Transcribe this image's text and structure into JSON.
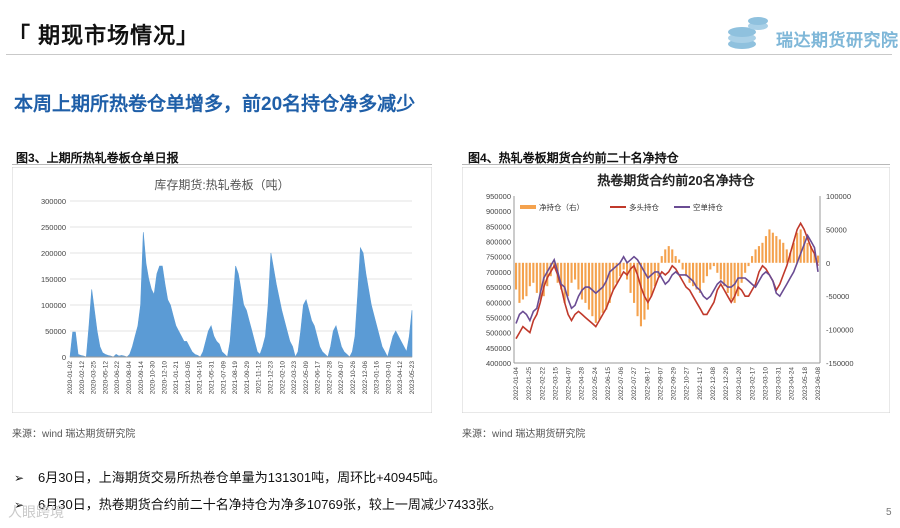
{
  "header": {
    "title": "「 期现市场情况」",
    "logo_text": "瑞达期货研究院"
  },
  "headline": "本周上期所热卷仓单增多，前20名持仓净多减少",
  "figures": [
    {
      "title": "图3、上期所热轧卷板仓单日报",
      "source": "来源：wind    瑞达期货研究院"
    },
    {
      "title": "图4、热轧卷板期货合约前二十名净持仓",
      "source": "来源：wind    瑞达期货研究院"
    }
  ],
  "bullets": [
    "6月30日，上海期货交易所热卷仓单量为131301吨，周环比+40945吨。",
    "6月30日，热卷期货合约前二十名净持仓为净多10769张，较上一周减少7433张。"
  ],
  "page_number": "5",
  "watermark": "人眼跨境",
  "colors": {
    "headline": "#1f5fa8",
    "bar_blue": "#5b9bd5",
    "net_orange": "#f4a24e",
    "long_red": "#c0392b",
    "short_purple": "#6a4c93"
  },
  "chart_data": [
    {
      "type": "area",
      "title": "库存期货:热轧卷板（吨）",
      "ylim": [
        0,
        300000
      ],
      "yticks": [
        "300000",
        "250000",
        "200000",
        "150000",
        "100000",
        "50000",
        "0"
      ],
      "x_ticks": [
        "2020-01-02",
        "2020-02-12",
        "2020-03-25",
        "2020-05-12",
        "2020-06-22",
        "2020-08-04",
        "2020-09-14",
        "2020-10-30",
        "2020-12-10",
        "2021-01-21",
        "2021-03-05",
        "2021-04-16",
        "2021-05-31",
        "2021-07-09",
        "2021-08-19",
        "2021-09-29",
        "2021-11-12",
        "2021-12-23",
        "2022-02-10",
        "2022-03-23",
        "2022-05-09",
        "2022-06-17",
        "2022-07-28",
        "2022-09-07",
        "2022-10-26",
        "2022-12-06",
        "2023-01-16",
        "2023-03-01",
        "2023-04-12",
        "2023-05-23"
      ],
      "values": [
        0,
        48000,
        48000,
        5000,
        3000,
        2000,
        0,
        60000,
        130000,
        90000,
        50000,
        20000,
        8000,
        5000,
        3000,
        2000,
        0,
        5000,
        2000,
        3000,
        2000,
        0,
        5000,
        20000,
        40000,
        60000,
        100000,
        240000,
        180000,
        150000,
        130000,
        120000,
        160000,
        175000,
        175000,
        140000,
        110000,
        100000,
        80000,
        60000,
        50000,
        40000,
        30000,
        30000,
        20000,
        10000,
        5000,
        3000,
        0,
        10000,
        30000,
        50000,
        60000,
        40000,
        30000,
        25000,
        10000,
        5000,
        0,
        30000,
        100000,
        175000,
        160000,
        130000,
        100000,
        90000,
        70000,
        50000,
        30000,
        10000,
        5000,
        20000,
        40000,
        100000,
        200000,
        170000,
        140000,
        115000,
        90000,
        70000,
        50000,
        30000,
        20000,
        0,
        10000,
        50000,
        100000,
        110000,
        90000,
        70000,
        60000,
        40000,
        20000,
        10000,
        5000,
        0,
        20000,
        50000,
        60000,
        40000,
        20000,
        10000,
        5000,
        0,
        10000,
        40000,
        120000,
        210000,
        200000,
        160000,
        130000,
        100000,
        80000,
        60000,
        40000,
        20000,
        10000,
        0,
        20000,
        40000,
        50000,
        40000,
        30000,
        20000,
        10000,
        40000,
        90000
      ]
    },
    {
      "type": "line",
      "title": "热卷期货合约前20名净持仓",
      "y_left_ticks": [
        "950000",
        "900000",
        "850000",
        "800000",
        "750000",
        "700000",
        "650000",
        "600000",
        "550000",
        "500000",
        "450000",
        "400000"
      ],
      "y_right_ticks": [
        "100000",
        "50000",
        "0",
        "-50000",
        "-100000",
        "-150000"
      ],
      "ylim_left": [
        400000,
        950000
      ],
      "ylim_right": [
        -150000,
        100000
      ],
      "x_ticks": [
        "2022-01-04",
        "2022-01-25",
        "2022-02-22",
        "2022-03-15",
        "2022-04-07",
        "2022-04-28",
        "2022-05-24",
        "2022-06-15",
        "2022-07-06",
        "2022-07-27",
        "2022-08-17",
        "2022-09-07",
        "2022-09-29",
        "2022-10-27",
        "2022-11-17",
        "2022-12-08",
        "2022-12-29",
        "2023-01-20",
        "2023-02-17",
        "2023-03-10",
        "2023-03-31",
        "2023-04-24",
        "2023-05-18",
        "2023-06-08"
      ],
      "series": [
        {
          "name": "净持仓（右）",
          "axis": "right",
          "color": "#f4a24e",
          "values": [
            -40000,
            -60000,
            -55000,
            -50000,
            -35000,
            -30000,
            -45000,
            -55000,
            -50000,
            -35000,
            -20000,
            -5000,
            -30000,
            -40000,
            -60000,
            -50000,
            -30000,
            -25000,
            -40000,
            -55000,
            -60000,
            -70000,
            -80000,
            -90000,
            -85000,
            -75000,
            -70000,
            -60000,
            -40000,
            -30000,
            -20000,
            -10000,
            -25000,
            -45000,
            -60000,
            -80000,
            -95000,
            -85000,
            -70000,
            -50000,
            -35000,
            -20000,
            10000,
            20000,
            25000,
            20000,
            10000,
            5000,
            -10000,
            -20000,
            -30000,
            -35000,
            -40000,
            -45000,
            -30000,
            -20000,
            -10000,
            -5000,
            -15000,
            -25000,
            -35000,
            -45000,
            -55000,
            -60000,
            -50000,
            -30000,
            -15000,
            -5000,
            10000,
            20000,
            25000,
            30000,
            40000,
            50000,
            45000,
            40000,
            35000,
            30000,
            20000,
            15000,
            30000,
            45000,
            50000,
            40000,
            30000,
            25000,
            15000,
            10769
          ]
        },
        {
          "name": "多头持仓",
          "axis": "left",
          "color": "#c0392b",
          "values": [
            480000,
            500000,
            520000,
            510000,
            500000,
            540000,
            560000,
            600000,
            650000,
            680000,
            700000,
            720000,
            690000,
            650000,
            600000,
            560000,
            540000,
            560000,
            570000,
            560000,
            550000,
            540000,
            530000,
            520000,
            540000,
            560000,
            580000,
            610000,
            640000,
            660000,
            680000,
            700000,
            690000,
            710000,
            720000,
            690000,
            650000,
            620000,
            600000,
            620000,
            650000,
            680000,
            700000,
            690000,
            700000,
            720000,
            710000,
            690000,
            670000,
            650000,
            640000,
            620000,
            600000,
            580000,
            560000,
            560000,
            580000,
            600000,
            640000,
            660000,
            640000,
            620000,
            600000,
            620000,
            650000,
            640000,
            620000,
            620000,
            640000,
            660000,
            700000,
            720000,
            710000,
            690000,
            670000,
            640000,
            660000,
            690000,
            720000,
            760000,
            800000,
            840000,
            860000,
            840000,
            810000,
            780000,
            760000,
            720000
          ]
        },
        {
          "name": "空单持仓",
          "axis": "left",
          "color": "#6a4c93",
          "values": [
            530000,
            560000,
            570000,
            560000,
            540000,
            570000,
            580000,
            630000,
            680000,
            700000,
            720000,
            740000,
            700000,
            660000,
            650000,
            610000,
            580000,
            590000,
            620000,
            640000,
            650000,
            650000,
            640000,
            630000,
            640000,
            650000,
            670000,
            700000,
            710000,
            720000,
            730000,
            750000,
            730000,
            740000,
            750000,
            740000,
            720000,
            700000,
            680000,
            690000,
            700000,
            700000,
            680000,
            660000,
            670000,
            690000,
            700000,
            690000,
            690000,
            690000,
            680000,
            670000,
            650000,
            640000,
            620000,
            610000,
            620000,
            640000,
            660000,
            670000,
            660000,
            650000,
            650000,
            660000,
            680000,
            680000,
            680000,
            670000,
            660000,
            650000,
            670000,
            690000,
            700000,
            690000,
            670000,
            630000,
            620000,
            640000,
            660000,
            680000,
            700000,
            730000,
            760000,
            790000,
            820000,
            800000,
            780000,
            700000
          ]
        }
      ]
    }
  ]
}
